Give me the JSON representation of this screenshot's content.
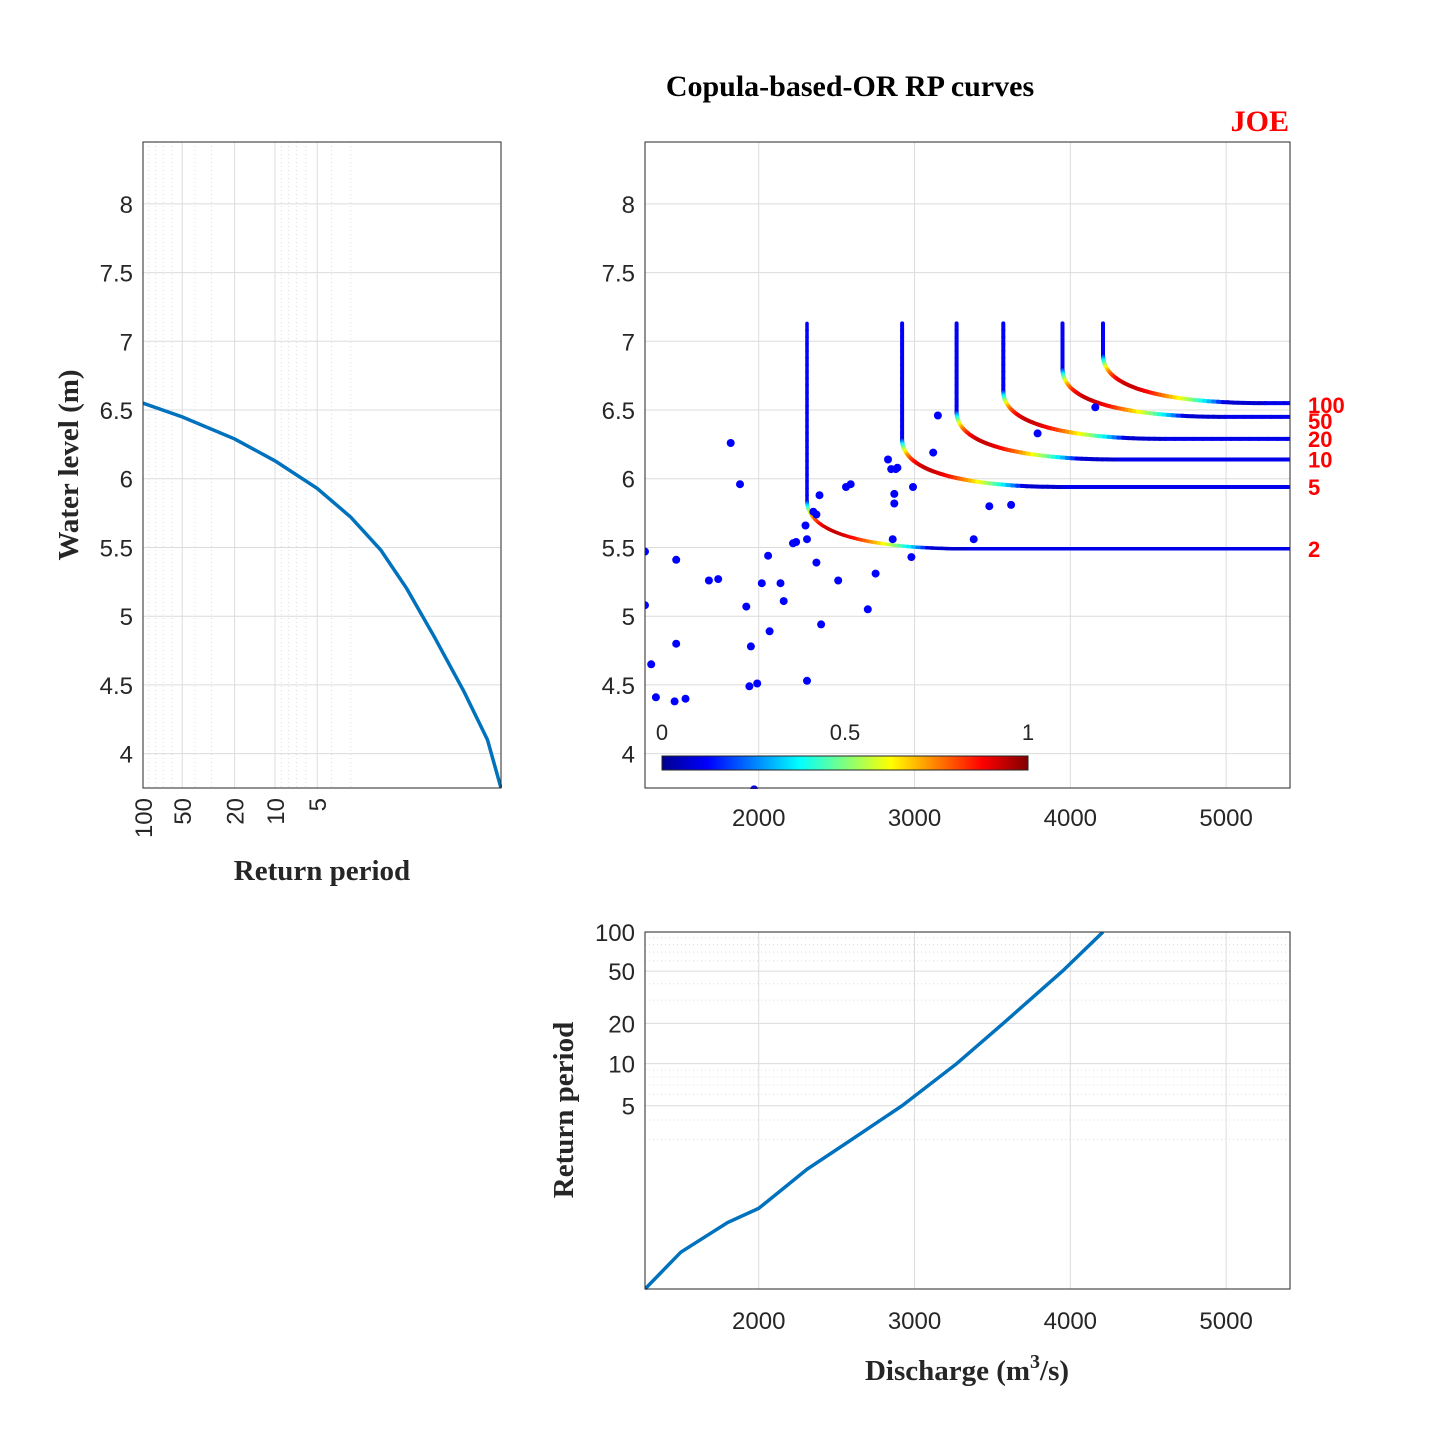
{
  "title": "Copula-based-OR RP curves",
  "copula_name": "JOE",
  "colors": {
    "series": "#0072BD",
    "scatter": "#0000FF",
    "annotation": "#FF0000"
  },
  "colorbar": {
    "colormap": "jet",
    "ticks": [
      "0",
      "0.5",
      "1"
    ]
  },
  "chart_data": [
    {
      "id": "left-panel",
      "type": "line",
      "xlabel": "Return period",
      "ylabel": "Water level (m)",
      "xscale": "log-exceedance",
      "xlim": [
        100,
        1
      ],
      "ylim": [
        3.75,
        8.45
      ],
      "xticks": [
        "100",
        "50",
        "20",
        "10",
        "5"
      ],
      "yticks": [
        "4",
        "4.5",
        "5",
        "5.5",
        "6",
        "6.5",
        "7",
        "7.5",
        "8"
      ],
      "grid": true,
      "series": [
        {
          "x": [
            100,
            50,
            20,
            10,
            5,
            3,
            2,
            1.5,
            1.2,
            1.05,
            1.01,
            1.0
          ],
          "y": [
            6.55,
            6.45,
            6.29,
            6.13,
            5.93,
            5.72,
            5.48,
            5.2,
            4.85,
            4.45,
            4.1,
            3.75
          ]
        }
      ]
    },
    {
      "id": "main-panel",
      "type": "scatter",
      "xlim": [
        1270,
        5410
      ],
      "ylim": [
        3.75,
        8.45
      ],
      "xticks": [
        "2000",
        "3000",
        "4000",
        "5000"
      ],
      "yticks": [
        "4",
        "4.5",
        "5",
        "5.5",
        "6",
        "6.5",
        "7",
        "7.5",
        "8"
      ],
      "grid": true,
      "observations": {
        "x": [
          1270,
          1270,
          1310,
          1340,
          1460,
          1470,
          1470,
          1530,
          1680,
          1740,
          1820,
          1880,
          1920,
          1940,
          1950,
          1970,
          1990,
          2020,
          2060,
          2070,
          2140,
          2160,
          2220,
          2240,
          2300,
          2310,
          2310,
          2350,
          2370,
          2370,
          2390,
          2400,
          2510,
          2560,
          2590,
          2700,
          2750,
          2830,
          2850,
          2860,
          2870,
          2870,
          2880,
          2890,
          2980,
          2990,
          3120,
          3150,
          3380,
          3480,
          3620,
          3790,
          4160
        ],
        "y": [
          5.47,
          5.08,
          4.65,
          4.41,
          4.38,
          4.8,
          5.41,
          4.4,
          5.26,
          5.27,
          6.26,
          5.96,
          5.07,
          4.49,
          4.78,
          3.74,
          4.51,
          5.24,
          5.44,
          4.89,
          5.24,
          5.11,
          5.53,
          5.54,
          5.66,
          5.56,
          4.53,
          5.76,
          5.39,
          5.74,
          5.88,
          4.94,
          5.26,
          5.94,
          5.96,
          5.05,
          5.31,
          6.14,
          6.07,
          5.56,
          5.89,
          5.82,
          6.07,
          6.08,
          5.43,
          5.94,
          6.19,
          6.46,
          5.56,
          5.8,
          5.81,
          6.33,
          6.52
        ]
      },
      "rp_curves": [
        {
          "label": "2",
          "q_asym": 2310,
          "h_asym": 5.49
        },
        {
          "label": "5",
          "q_asym": 2920,
          "h_asym": 5.94
        },
        {
          "label": "10",
          "q_asym": 3270,
          "h_asym": 6.14
        },
        {
          "label": "20",
          "q_asym": 3570,
          "h_asym": 6.29
        },
        {
          "label": "50",
          "q_asym": 3950,
          "h_asym": 6.45
        },
        {
          "label": "100",
          "q_asym": 4210,
          "h_asym": 6.55
        }
      ]
    },
    {
      "id": "bottom-panel",
      "type": "line",
      "xlabel_main": "Discharge (m",
      "xlabel_sup": "3",
      "xlabel_end": "/s)",
      "ylabel": "Return period",
      "yscale": "log-exceedance",
      "xlim": [
        1270,
        5410
      ],
      "ylim": [
        1,
        100
      ],
      "xticks": [
        "2000",
        "3000",
        "4000",
        "5000"
      ],
      "yticks": [
        "100",
        "50",
        "20",
        "10",
        "5"
      ],
      "grid": true,
      "series": [
        {
          "x": [
            1270,
            1500,
            1800,
            2000,
            2310,
            2600,
            2920,
            3270,
            3570,
            3950,
            4210
          ],
          "y": [
            1.0,
            1.05,
            1.2,
            1.33,
            2,
            3,
            5,
            10,
            20,
            50,
            100
          ]
        }
      ]
    }
  ]
}
